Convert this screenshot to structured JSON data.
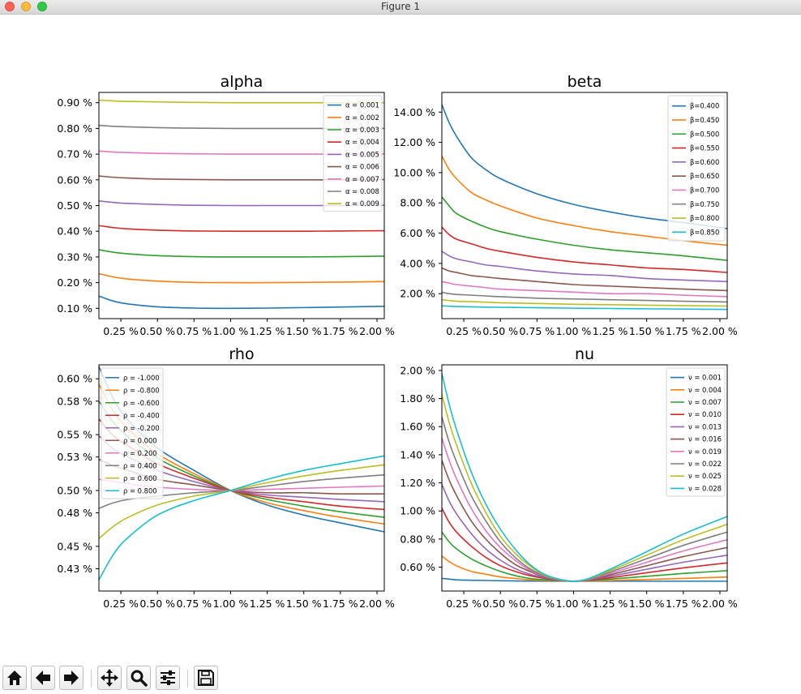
{
  "window": {
    "title": "Figure 1"
  },
  "toolbar": {
    "buttons": [
      {
        "name": "home-button",
        "icon": "home-icon"
      },
      {
        "name": "back-button",
        "icon": "arrow-left-icon"
      },
      {
        "name": "forward-button",
        "icon": "arrow-right-icon"
      },
      {
        "name": "pan-button",
        "icon": "move-icon"
      },
      {
        "name": "zoom-button",
        "icon": "magnifier-icon"
      },
      {
        "name": "configure-subplots-button",
        "icon": "sliders-icon"
      },
      {
        "name": "save-button",
        "icon": "floppy-disk-icon"
      }
    ]
  },
  "chart_data": [
    {
      "type": "line",
      "title": "alpha",
      "xlabel": "",
      "ylabel": "",
      "x_tick_labels": [
        "0.25 %",
        "0.50 %",
        "0.75 %",
        "1.00 %",
        "1.25 %",
        "1.50 %",
        "1.75 %",
        "2.00 %"
      ],
      "y_tick_labels": [
        "0.10 %",
        "0.20 %",
        "0.30 %",
        "0.40 %",
        "0.50 %",
        "0.60 %",
        "0.70 %",
        "0.80 %",
        "0.90 %"
      ],
      "xlim": [
        0.1,
        2.05
      ],
      "ylim": [
        0.06,
        0.94
      ],
      "grid": false,
      "legend": "top-right",
      "colors": [
        "#1f77b4",
        "#ff7f0e",
        "#2ca02c",
        "#d62728",
        "#9467bd",
        "#8c564b",
        "#e377c2",
        "#7f7f7f",
        "#bcbd22"
      ],
      "x": [
        0.1,
        0.2,
        0.3,
        0.5,
        0.75,
        1.0,
        1.25,
        1.5,
        1.75,
        2.05
      ],
      "series": [
        {
          "name": "α = 0.001",
          "values": [
            0.148,
            0.128,
            0.117,
            0.106,
            0.101,
            0.1,
            0.101,
            0.103,
            0.105,
            0.108
          ]
        },
        {
          "name": "α = 0.002",
          "values": [
            0.235,
            0.222,
            0.214,
            0.206,
            0.201,
            0.2,
            0.2,
            0.201,
            0.202,
            0.204
          ]
        },
        {
          "name": "α = 0.003",
          "values": [
            0.328,
            0.318,
            0.312,
            0.305,
            0.301,
            0.3,
            0.3,
            0.3,
            0.301,
            0.303
          ]
        },
        {
          "name": "α = 0.004",
          "values": [
            0.422,
            0.414,
            0.409,
            0.404,
            0.401,
            0.4,
            0.4,
            0.4,
            0.401,
            0.402
          ]
        },
        {
          "name": "α = 0.005",
          "values": [
            0.518,
            0.512,
            0.508,
            0.504,
            0.501,
            0.5,
            0.5,
            0.5,
            0.5,
            0.501
          ]
        },
        {
          "name": "α = 0.006",
          "values": [
            0.615,
            0.61,
            0.607,
            0.603,
            0.601,
            0.6,
            0.6,
            0.6,
            0.6,
            0.601
          ]
        },
        {
          "name": "α = 0.007",
          "values": [
            0.712,
            0.708,
            0.706,
            0.703,
            0.701,
            0.7,
            0.7,
            0.7,
            0.7,
            0.701
          ]
        },
        {
          "name": "α = 0.008",
          "values": [
            0.812,
            0.808,
            0.806,
            0.803,
            0.801,
            0.8,
            0.8,
            0.8,
            0.8,
            0.8
          ]
        },
        {
          "name": "α = 0.009",
          "values": [
            0.91,
            0.907,
            0.905,
            0.903,
            0.901,
            0.9,
            0.9,
            0.9,
            0.9,
            0.9
          ]
        }
      ]
    },
    {
      "type": "line",
      "title": "beta",
      "xlabel": "",
      "ylabel": "",
      "x_tick_labels": [
        "0.25 %",
        "0.50 %",
        "0.75 %",
        "1.00 %",
        "1.25 %",
        "1.50 %",
        "1.75 %",
        "2.00 %"
      ],
      "y_tick_labels": [
        "2.00 %",
        "4.00 %",
        "6.00 %",
        "8.00 %",
        "10.00 %",
        "12.00 %",
        "14.00 %"
      ],
      "xlim": [
        0.1,
        2.05
      ],
      "ylim": [
        0.35,
        15.3
      ],
      "grid": false,
      "legend": "top-right",
      "colors": [
        "#1f77b4",
        "#ff7f0e",
        "#2ca02c",
        "#d62728",
        "#9467bd",
        "#8c564b",
        "#e377c2",
        "#7f7f7f",
        "#bcbd22",
        "#17becf"
      ],
      "x": [
        0.1,
        0.15,
        0.2,
        0.3,
        0.4,
        0.5,
        0.75,
        1.0,
        1.25,
        1.5,
        1.75,
        2.05
      ],
      "series": [
        {
          "name": "β=0.400",
          "values": [
            14.5,
            13.3,
            12.4,
            11.0,
            10.2,
            9.6,
            8.6,
            7.9,
            7.4,
            7.0,
            6.7,
            6.3
          ]
        },
        {
          "name": "β=0.450",
          "values": [
            11.1,
            10.2,
            9.6,
            8.7,
            8.2,
            7.8,
            7.0,
            6.5,
            6.1,
            5.8,
            5.5,
            5.2
          ]
        },
        {
          "name": "β=0.500",
          "values": [
            8.4,
            7.8,
            7.3,
            6.8,
            6.4,
            6.1,
            5.6,
            5.2,
            4.9,
            4.7,
            4.5,
            4.2
          ]
        },
        {
          "name": "β=0.550",
          "values": [
            6.4,
            5.9,
            5.6,
            5.3,
            5.0,
            4.8,
            4.4,
            4.1,
            3.9,
            3.7,
            3.6,
            3.4
          ]
        },
        {
          "name": "β=0.600",
          "values": [
            4.8,
            4.5,
            4.3,
            4.1,
            3.9,
            3.8,
            3.5,
            3.3,
            3.2,
            3.0,
            2.9,
            2.8
          ]
        },
        {
          "name": "β=0.650",
          "values": [
            3.7,
            3.5,
            3.4,
            3.2,
            3.1,
            3.0,
            2.8,
            2.6,
            2.5,
            2.4,
            2.3,
            2.2
          ]
        },
        {
          "name": "β=0.700",
          "values": [
            2.8,
            2.7,
            2.6,
            2.5,
            2.4,
            2.3,
            2.2,
            2.1,
            2.0,
            2.0,
            1.9,
            1.8
          ]
        },
        {
          "name": "β=0.750",
          "values": [
            2.1,
            2.0,
            1.95,
            1.9,
            1.85,
            1.8,
            1.7,
            1.65,
            1.6,
            1.55,
            1.5,
            1.45
          ]
        },
        {
          "name": "β=0.800",
          "values": [
            1.6,
            1.55,
            1.5,
            1.47,
            1.44,
            1.4,
            1.35,
            1.3,
            1.27,
            1.24,
            1.21,
            1.18
          ]
        },
        {
          "name": "β=0.850",
          "values": [
            1.2,
            1.17,
            1.15,
            1.13,
            1.11,
            1.1,
            1.07,
            1.04,
            1.02,
            1.0,
            0.98,
            0.96
          ]
        }
      ]
    },
    {
      "type": "line",
      "title": "rho",
      "xlabel": "",
      "ylabel": "",
      "x_tick_labels": [
        "0.25 %",
        "0.50 %",
        "0.75 %",
        "1.00 %",
        "1.25 %",
        "1.50 %",
        "1.75 %",
        "2.00 %"
      ],
      "y_tick_labels": [
        "0.43 %",
        "0.45 %",
        "0.48 %",
        "0.50 %",
        "0.53 %",
        "0.55 %",
        "0.58 %",
        "0.60 %"
      ],
      "xlim": [
        0.1,
        2.05
      ],
      "ylim": [
        0.41,
        0.6125
      ],
      "grid": false,
      "legend": "top-left",
      "colors": [
        "#1f77b4",
        "#ff7f0e",
        "#2ca02c",
        "#d62728",
        "#9467bd",
        "#8c564b",
        "#e377c2",
        "#7f7f7f",
        "#bcbd22",
        "#17becf"
      ],
      "x": [
        0.1,
        0.2,
        0.3,
        0.5,
        0.75,
        1.0,
        1.25,
        1.5,
        1.75,
        2.05
      ],
      "series": [
        {
          "name": "ρ = -1.000",
          "values": [
            0.611,
            0.582,
            0.563,
            0.538,
            0.518,
            0.5,
            0.487,
            0.478,
            0.471,
            0.463
          ]
        },
        {
          "name": "ρ = -0.800",
          "values": [
            0.595,
            0.571,
            0.555,
            0.533,
            0.515,
            0.5,
            0.489,
            0.482,
            0.476,
            0.47
          ]
        },
        {
          "name": "ρ = -0.600",
          "values": [
            0.58,
            0.561,
            0.548,
            0.529,
            0.513,
            0.5,
            0.492,
            0.486,
            0.481,
            0.476
          ]
        },
        {
          "name": "ρ = -0.400",
          "values": [
            0.564,
            0.549,
            0.54,
            0.524,
            0.511,
            0.5,
            0.494,
            0.49,
            0.486,
            0.483
          ]
        },
        {
          "name": "ρ = -0.200",
          "values": [
            0.549,
            0.537,
            0.53,
            0.518,
            0.508,
            0.5,
            0.496,
            0.494,
            0.492,
            0.49
          ]
        },
        {
          "name": "ρ = 0.000",
          "values": [
            0.528,
            0.522,
            0.518,
            0.51,
            0.505,
            0.5,
            0.498,
            0.498,
            0.497,
            0.497
          ]
        },
        {
          "name": "ρ = 0.200",
          "values": [
            0.51,
            0.508,
            0.506,
            0.503,
            0.501,
            0.5,
            0.501,
            0.502,
            0.503,
            0.504
          ]
        },
        {
          "name": "ρ = 0.400",
          "values": [
            0.484,
            0.489,
            0.492,
            0.495,
            0.498,
            0.5,
            0.504,
            0.508,
            0.511,
            0.514
          ]
        },
        {
          "name": "ρ = 0.600",
          "values": [
            0.457,
            0.468,
            0.476,
            0.487,
            0.495,
            0.5,
            0.507,
            0.513,
            0.518,
            0.523
          ]
        },
        {
          "name": "ρ = 0.800",
          "values": [
            0.42,
            0.443,
            0.458,
            0.478,
            0.491,
            0.5,
            0.51,
            0.518,
            0.524,
            0.531
          ]
        }
      ]
    },
    {
      "type": "line",
      "title": "nu",
      "xlabel": "",
      "ylabel": "",
      "x_tick_labels": [
        "0.25 %",
        "0.50 %",
        "0.75 %",
        "1.00 %",
        "1.25 %",
        "1.50 %",
        "1.75 %",
        "2.00 %"
      ],
      "y_tick_labels": [
        "0.60 %",
        "0.80 %",
        "1.00 %",
        "1.20 %",
        "1.40 %",
        "1.60 %",
        "1.80 %",
        "2.00 %"
      ],
      "xlim": [
        0.1,
        2.05
      ],
      "ylim": [
        0.43,
        2.04
      ],
      "grid": false,
      "legend": "top-right",
      "colors": [
        "#1f77b4",
        "#ff7f0e",
        "#2ca02c",
        "#d62728",
        "#9467bd",
        "#8c564b",
        "#e377c2",
        "#7f7f7f",
        "#bcbd22",
        "#17becf"
      ],
      "x": [
        0.1,
        0.15,
        0.2,
        0.3,
        0.4,
        0.5,
        0.6,
        0.7,
        0.8,
        0.9,
        1.0,
        1.1,
        1.25,
        1.5,
        1.75,
        2.05
      ],
      "series": [
        {
          "name": "ν = 0.001",
          "values": [
            0.52,
            0.515,
            0.51,
            0.507,
            0.505,
            0.503,
            0.502,
            0.501,
            0.5,
            0.5,
            0.5,
            0.5,
            0.5,
            0.5,
            0.5,
            0.5
          ]
        },
        {
          "name": "ν = 0.004",
          "values": [
            0.68,
            0.64,
            0.61,
            0.57,
            0.55,
            0.53,
            0.52,
            0.51,
            0.505,
            0.502,
            0.5,
            0.502,
            0.505,
            0.512,
            0.52,
            0.53
          ]
        },
        {
          "name": "ν = 0.007",
          "values": [
            0.85,
            0.78,
            0.73,
            0.66,
            0.61,
            0.57,
            0.54,
            0.52,
            0.51,
            0.503,
            0.5,
            0.504,
            0.515,
            0.535,
            0.555,
            0.575
          ]
        },
        {
          "name": "ν = 0.010",
          "values": [
            1.02,
            0.92,
            0.85,
            0.75,
            0.67,
            0.61,
            0.57,
            0.54,
            0.52,
            0.505,
            0.5,
            0.506,
            0.525,
            0.56,
            0.595,
            0.63
          ]
        },
        {
          "name": "ν = 0.013",
          "values": [
            1.19,
            1.07,
            0.98,
            0.84,
            0.73,
            0.65,
            0.59,
            0.55,
            0.525,
            0.507,
            0.5,
            0.508,
            0.535,
            0.585,
            0.635,
            0.685
          ]
        },
        {
          "name": "ν = 0.016",
          "values": [
            1.36,
            1.22,
            1.11,
            0.93,
            0.8,
            0.7,
            0.62,
            0.57,
            0.53,
            0.509,
            0.5,
            0.51,
            0.545,
            0.61,
            0.675,
            0.74
          ]
        },
        {
          "name": "ν = 0.019",
          "values": [
            1.52,
            1.36,
            1.23,
            1.02,
            0.86,
            0.74,
            0.65,
            0.58,
            0.535,
            0.51,
            0.5,
            0.512,
            0.555,
            0.635,
            0.715,
            0.795
          ]
        },
        {
          "name": "ν = 0.022",
          "values": [
            1.67,
            1.49,
            1.35,
            1.11,
            0.93,
            0.78,
            0.67,
            0.59,
            0.54,
            0.512,
            0.5,
            0.514,
            0.565,
            0.66,
            0.755,
            0.85
          ]
        },
        {
          "name": "ν = 0.025",
          "values": [
            1.83,
            1.63,
            1.47,
            1.2,
            0.99,
            0.82,
            0.7,
            0.61,
            0.545,
            0.513,
            0.5,
            0.516,
            0.575,
            0.685,
            0.795,
            0.905
          ]
        },
        {
          "name": "ν = 0.028",
          "values": [
            1.98,
            1.76,
            1.58,
            1.28,
            1.05,
            0.87,
            0.73,
            0.62,
            0.55,
            0.515,
            0.5,
            0.518,
            0.585,
            0.71,
            0.835,
            0.96
          ]
        }
      ]
    }
  ]
}
